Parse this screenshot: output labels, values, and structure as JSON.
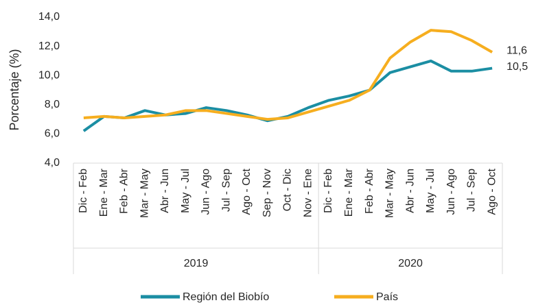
{
  "chart_data": {
    "type": "line",
    "y_label": "Porcentaje (%)",
    "groups": [
      {
        "label": "2019",
        "categories": [
          "Dic - Feb",
          "Ene - Mar",
          "Feb - Abr",
          "Mar - May",
          "Abr - Jun",
          "May - Jul",
          "Jun - Ago",
          "Jul - Sep",
          "Ago - Oct",
          "Sep - Nov",
          "Oct - Dic",
          "Nov - Ene"
        ]
      },
      {
        "label": "2020",
        "categories": [
          "Dic - Feb",
          "Ene - Mar",
          "Feb - Abr",
          "Mar - May",
          "Abr - Jun",
          "May - Jul",
          "Jun - Ago",
          "Jul - Sep",
          "Ago - Oct"
        ]
      }
    ],
    "series": [
      {
        "name": "Región del Biobío",
        "color": "#1b8ea3",
        "values": [
          6.2,
          7.2,
          7.1,
          7.6,
          7.3,
          7.4,
          7.8,
          7.6,
          7.3,
          6.9,
          7.2,
          7.8,
          8.3,
          8.6,
          9.0,
          10.2,
          10.6,
          11.0,
          10.3,
          10.3,
          10.5
        ],
        "value_labels": [
          null,
          null,
          null,
          null,
          null,
          null,
          null,
          null,
          null,
          null,
          null,
          null,
          null,
          null,
          null,
          null,
          null,
          null,
          null,
          null,
          "10,5"
        ]
      },
      {
        "name": "País",
        "color": "#f6ae1f",
        "values": [
          7.1,
          7.2,
          7.1,
          7.2,
          7.3,
          7.6,
          7.6,
          7.4,
          7.2,
          7.0,
          7.1,
          7.5,
          7.9,
          8.3,
          9.0,
          11.2,
          12.3,
          13.1,
          13.0,
          12.4,
          11.6
        ],
        "value_labels": [
          null,
          null,
          null,
          null,
          null,
          null,
          null,
          null,
          null,
          null,
          null,
          null,
          null,
          null,
          null,
          null,
          null,
          null,
          null,
          null,
          "11,6"
        ]
      }
    ],
    "ylim": [
      4,
      14
    ],
    "yticks": [
      {
        "value": 4,
        "label": "4,0"
      },
      {
        "value": 6,
        "label": "6,0"
      },
      {
        "value": 8,
        "label": "8,0"
      },
      {
        "value": 10,
        "label": "10,0"
      },
      {
        "value": 12,
        "label": "12,0"
      },
      {
        "value": 14,
        "label": "14,0"
      }
    ],
    "grid": false,
    "legend": "bottom"
  }
}
